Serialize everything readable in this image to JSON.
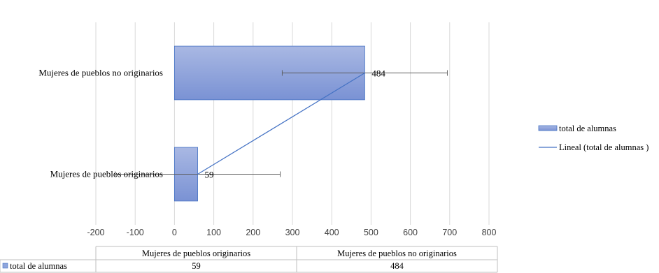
{
  "chart_data": {
    "type": "bar",
    "orientation": "horizontal",
    "categories": [
      "Mujeres de pueblos originarios",
      "Mujeres de pueblos no originarios"
    ],
    "series": [
      {
        "name": "total de alumnas",
        "values": [
          59,
          484
        ],
        "color": "#8FA5DC",
        "error_bars": [
          210,
          210
        ]
      }
    ],
    "trendline": {
      "name": "Lineal (total de alumnas )",
      "type": "linear",
      "color": "#4472C4"
    },
    "data_labels": [
      "59",
      "484"
    ],
    "xlim": [
      -200,
      800
    ],
    "xticks": [
      "-200",
      "-100",
      "0",
      "100",
      "200",
      "300",
      "400",
      "500",
      "600",
      "700",
      "800"
    ],
    "grid": "vertical",
    "legend_position": "right",
    "data_table": {
      "headers": [
        "Mujeres de pueblos originarios",
        "Mujeres de pueblos no originarios"
      ],
      "row_label": "total de alumnas",
      "values": [
        "59",
        "484"
      ]
    },
    "title": "",
    "xlabel": "",
    "ylabel": ""
  },
  "legend": {
    "series_label": "total de alumnas",
    "trend_label": "Lineal (total de alumnas )"
  }
}
